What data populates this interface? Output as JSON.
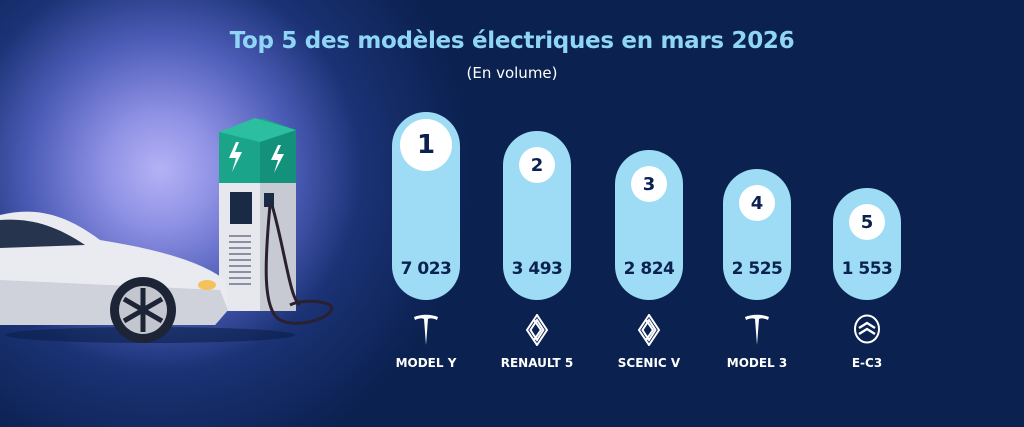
{
  "chart_data": {
    "type": "bar",
    "title": "Top 5 des modèles électriques en mars 2026",
    "subtitle": "(En volume)",
    "categories": [
      "MODEL Y",
      "RENAULT 5",
      "SCENIC V",
      "MODEL 3",
      "E-C3"
    ],
    "ranks": [
      "1",
      "2",
      "3",
      "4",
      "5"
    ],
    "values": [
      7023,
      3493,
      2824,
      2525,
      1553
    ],
    "value_labels": [
      "7 023",
      "3 493",
      "2 824",
      "2 525",
      "1 553"
    ],
    "brands": [
      "tesla",
      "renault",
      "renault",
      "tesla",
      "citroen"
    ]
  },
  "colors": {
    "background": "#0b2150",
    "pill": "#9ddcf4",
    "title": "#8fd6f6"
  }
}
